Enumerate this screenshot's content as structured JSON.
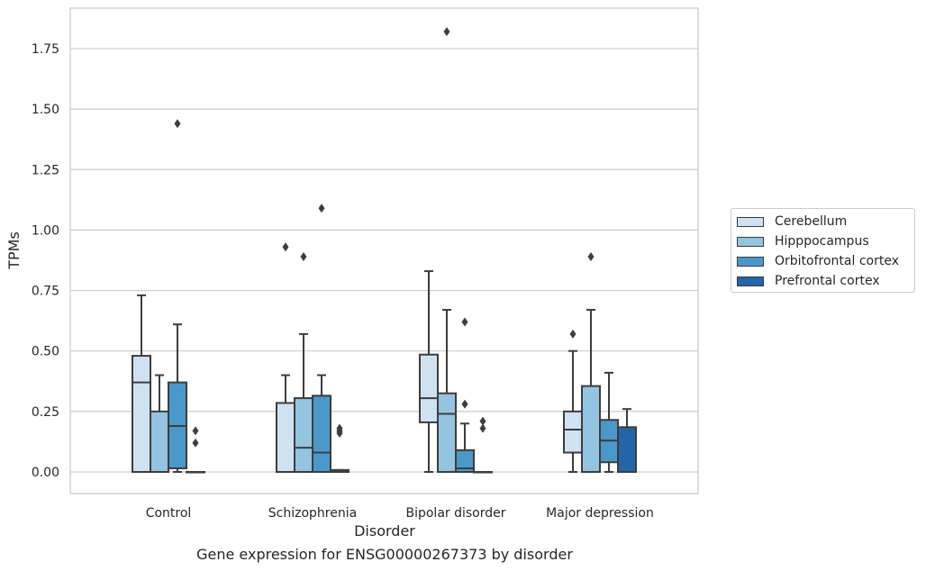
{
  "chart_data": {
    "type": "box",
    "xlabel": "Disorder",
    "ylabel": "TPMs",
    "ylim": [
      -0.09,
      1.92
    ],
    "yticks": [
      "0.00",
      "0.25",
      "0.50",
      "0.75",
      "1.00",
      "1.25",
      "1.50",
      "1.75"
    ],
    "ytick_values": [
      0,
      0.25,
      0.5,
      0.75,
      1.0,
      1.25,
      1.5,
      1.75
    ],
    "grid": true,
    "legend_placement": "right",
    "categories": [
      "Control",
      "Schizophrenia",
      "Bipolar disorder",
      "Major depression"
    ],
    "series": [
      {
        "name": "Cerebellum",
        "color": "#d0e1f2",
        "boxes": [
          {
            "min": 0,
            "q1": 0,
            "median": 0.37,
            "q3": 0.48,
            "max": 0.73,
            "outliers": []
          },
          {
            "min": 0,
            "q1": 0,
            "median": 0,
            "q3": 0.285,
            "max": 0.4,
            "outliers": [
              0.93
            ]
          },
          {
            "min": 0,
            "q1": 0.205,
            "median": 0.305,
            "q3": 0.485,
            "max": 0.83,
            "outliers": []
          },
          {
            "min": 0,
            "q1": 0.08,
            "median": 0.175,
            "q3": 0.25,
            "max": 0.5,
            "outliers": [
              0.57
            ]
          }
        ]
      },
      {
        "name": "Hipppocampus",
        "color": "#94c4df",
        "boxes": [
          {
            "min": 0,
            "q1": 0,
            "median": 0,
            "q3": 0.25,
            "max": 0.4,
            "outliers": []
          },
          {
            "min": 0,
            "q1": 0,
            "median": 0.1,
            "q3": 0.305,
            "max": 0.57,
            "outliers": [
              0.89
            ]
          },
          {
            "min": 0,
            "q1": 0,
            "median": 0.24,
            "q3": 0.325,
            "max": 0.67,
            "outliers": [
              1.82
            ]
          },
          {
            "min": 0,
            "q1": 0,
            "median": 0,
            "q3": 0.355,
            "max": 0.67,
            "outliers": [
              0.89
            ]
          }
        ]
      },
      {
        "name": "Orbitofrontal cortex",
        "color": "#4a98c9",
        "boxes": [
          {
            "min": 0,
            "q1": 0.015,
            "median": 0.19,
            "q3": 0.37,
            "max": 0.61,
            "outliers": [
              1.44
            ]
          },
          {
            "min": 0,
            "q1": 0,
            "median": 0.08,
            "q3": 0.315,
            "max": 0.4,
            "outliers": [
              1.09
            ]
          },
          {
            "min": 0,
            "q1": 0,
            "median": 0.015,
            "q3": 0.09,
            "max": 0.2,
            "outliers": [
              0.62,
              0.28
            ]
          },
          {
            "min": 0,
            "q1": 0.04,
            "median": 0.13,
            "q3": 0.215,
            "max": 0.41,
            "outliers": []
          }
        ]
      },
      {
        "name": "Prefrontal cortex",
        "color": "#2464a8",
        "boxes": [
          {
            "min": 0,
            "q1": 0,
            "median": 0,
            "q3": 0,
            "max": 0,
            "outliers": [
              0.17,
              0.12
            ]
          },
          {
            "min": 0,
            "q1": 0,
            "median": 0,
            "q3": 0.008,
            "max": 0.008,
            "outliers": [
              0.18,
              0.17,
              0.16
            ]
          },
          {
            "min": 0,
            "q1": 0,
            "median": 0,
            "q3": 0,
            "max": 0,
            "outliers": [
              0.21,
              0.18
            ]
          },
          {
            "min": 0,
            "q1": 0,
            "median": 0,
            "q3": 0.185,
            "max": 0.26,
            "outliers": []
          }
        ]
      }
    ],
    "caption": "Gene expression for ENSG00000267373 by disorder"
  }
}
